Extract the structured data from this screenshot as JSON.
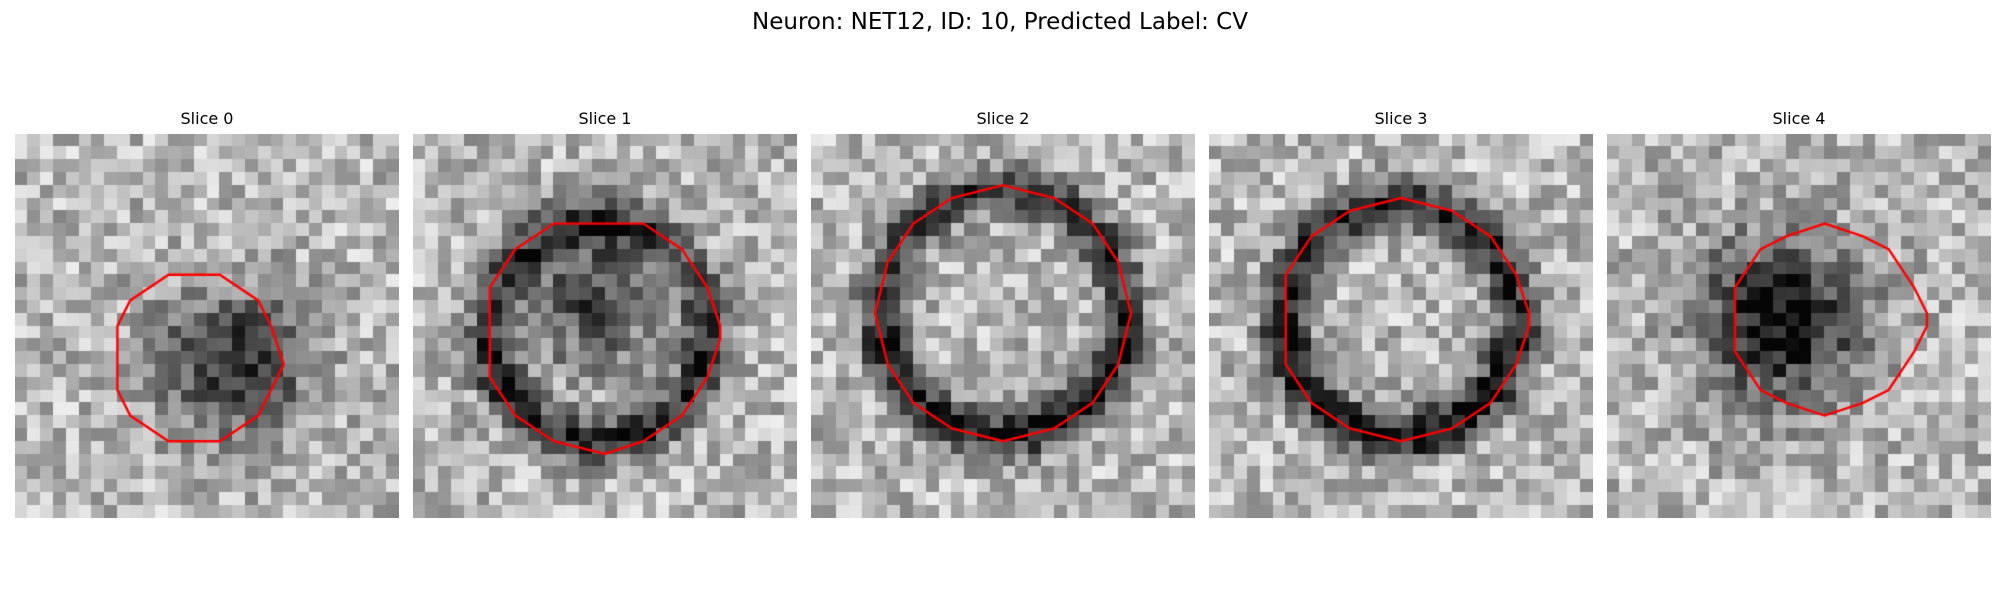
{
  "figure": {
    "title": "Neuron: NET12, ID: 10, Predicted Label: CV"
  },
  "contour_color": "#ff0000",
  "colormap": "gray",
  "panels": [
    {
      "title": "Slice 0",
      "seed": 11,
      "pattern": "blob",
      "intensity": 0.55
    },
    {
      "title": "Slice 1",
      "seed": 23,
      "pattern": "ring",
      "intensity": 0.45
    },
    {
      "title": "Slice 2",
      "seed": 37,
      "pattern": "ring",
      "intensity": 0.5
    },
    {
      "title": "Slice 3",
      "seed": 41,
      "pattern": "ring",
      "intensity": 0.55
    },
    {
      "title": "Slice 4",
      "seed": 53,
      "pattern": "blob",
      "intensity": 0.7
    }
  ]
}
